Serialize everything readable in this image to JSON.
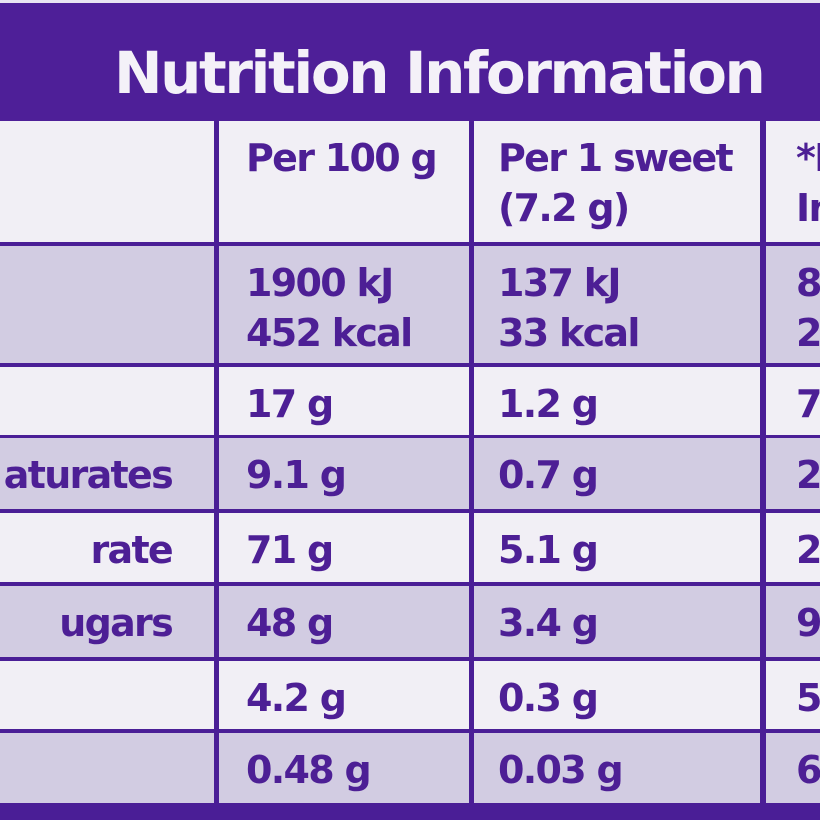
{
  "title": "Nutrition Information",
  "header": {
    "per100": [
      "Per 100 g"
    ],
    "perSweet": [
      "Per 1 sweet",
      "(7.2 g)"
    ],
    "ri": [
      "*R",
      "In"
    ]
  },
  "rows": [
    {
      "label": "",
      "per100": [
        "1900 kJ",
        "452 kcal"
      ],
      "perSweet": [
        "137 kJ",
        "33 kcal"
      ],
      "ri": [
        "8",
        "2"
      ]
    },
    {
      "label": "",
      "per100": [
        "17 g"
      ],
      "perSweet": [
        "1.2 g"
      ],
      "ri": [
        "7"
      ]
    },
    {
      "label": "aturates",
      "per100": [
        "9.1 g"
      ],
      "perSweet": [
        "0.7 g"
      ],
      "ri": [
        "2"
      ]
    },
    {
      "label": "rate",
      "per100": [
        "71 g"
      ],
      "perSweet": [
        "5.1 g"
      ],
      "ri": [
        "2"
      ]
    },
    {
      "label": "ugars",
      "per100": [
        "48 g"
      ],
      "perSweet": [
        "3.4 g"
      ],
      "ri": [
        "9"
      ]
    },
    {
      "label": "",
      "per100": [
        "4.2 g"
      ],
      "perSweet": [
        "0.3 g"
      ],
      "ri": [
        "5"
      ]
    },
    {
      "label": "",
      "per100": [
        "0.48 g"
      ],
      "perSweet": [
        "0.03 g"
      ],
      "ri": [
        "6"
      ]
    }
  ],
  "colors": {
    "purple": "#4e1f98",
    "lightCell": "#f1eff5",
    "shadedCell": "#d2cce2"
  }
}
